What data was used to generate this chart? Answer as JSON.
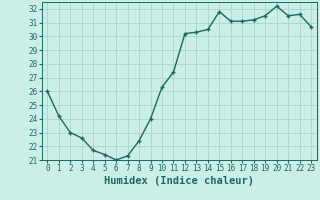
{
  "x": [
    0,
    1,
    2,
    3,
    4,
    5,
    6,
    7,
    8,
    9,
    10,
    11,
    12,
    13,
    14,
    15,
    16,
    17,
    18,
    19,
    20,
    21,
    22,
    23
  ],
  "y": [
    26.0,
    24.2,
    23.0,
    22.6,
    21.7,
    21.4,
    21.0,
    21.3,
    22.4,
    24.0,
    26.3,
    27.4,
    30.2,
    30.3,
    30.5,
    31.8,
    31.1,
    31.1,
    31.2,
    31.5,
    32.2,
    31.5,
    31.6,
    30.7
  ],
  "line_color": "#1a6b5a",
  "marker": "+",
  "bg_color": "#cceee8",
  "grid_color": "#aad4cc",
  "xlabel": "Humidex (Indice chaleur)",
  "ylim": [
    21,
    32.5
  ],
  "xlim": [
    -0.5,
    23.5
  ],
  "yticks": [
    21,
    22,
    23,
    24,
    25,
    26,
    27,
    28,
    29,
    30,
    31,
    32
  ],
  "xticks": [
    0,
    1,
    2,
    3,
    4,
    5,
    6,
    7,
    8,
    9,
    10,
    11,
    12,
    13,
    14,
    15,
    16,
    17,
    18,
    19,
    20,
    21,
    22,
    23
  ],
  "tick_fontsize": 5.5,
  "xlabel_fontsize": 7.5,
  "line_width": 1.0,
  "marker_size": 3.5,
  "marker_ew": 1.0
}
